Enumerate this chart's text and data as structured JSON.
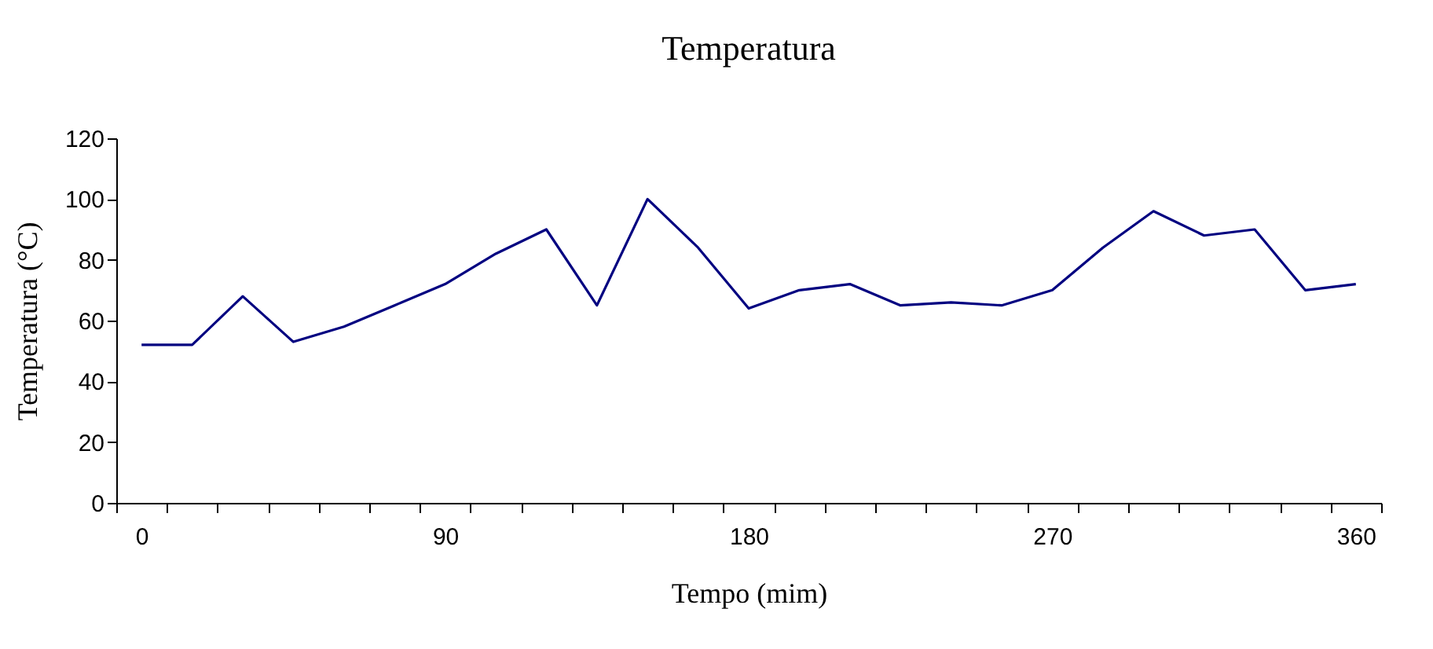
{
  "chart_data": {
    "type": "line",
    "title": "Temperatura",
    "xlabel": "Tempo (mim)",
    "ylabel": "Temperatura (°C)",
    "categories": [
      "0",
      null,
      null,
      null,
      null,
      null,
      "90",
      null,
      null,
      null,
      null,
      null,
      "180",
      null,
      null,
      null,
      null,
      null,
      "270",
      null,
      null,
      null,
      null,
      null,
      "360"
    ],
    "series": [
      {
        "color": "#000080",
        "values": [
          52,
          52,
          68,
          53,
          58,
          65,
          72,
          82,
          90,
          65,
          100,
          84,
          64,
          70,
          72,
          65,
          66,
          65,
          70,
          84,
          96,
          88,
          90,
          70,
          72
        ]
      }
    ],
    "ylim": [
      0,
      120
    ],
    "yticks": [
      0,
      20,
      40,
      60,
      80,
      100,
      120
    ],
    "grid": false,
    "legend": false,
    "marker": "none",
    "line_style": "solid"
  }
}
